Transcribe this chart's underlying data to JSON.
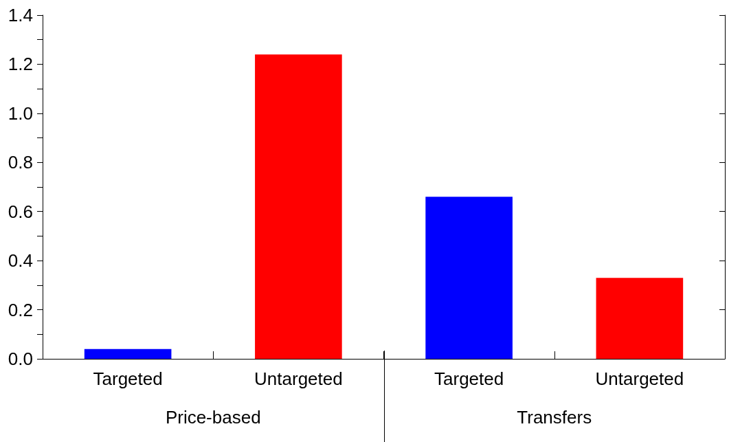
{
  "chart_data": {
    "type": "bar",
    "categories": [
      "Targeted",
      "Untargeted",
      "Targeted",
      "Untargeted"
    ],
    "values": [
      0.04,
      1.24,
      0.66,
      0.33
    ],
    "colors": [
      "#0000ff",
      "#ff0000",
      "#0000ff",
      "#ff0000"
    ],
    "ylim": [
      0,
      1.4
    ],
    "yticks": [
      {
        "value": 0,
        "label": "0.0"
      },
      {
        "value": 0.1,
        "label": null
      },
      {
        "value": 0.2,
        "label": "0.2"
      },
      {
        "value": 0.3,
        "label": null
      },
      {
        "value": 0.4,
        "label": "0.4"
      },
      {
        "value": 0.5,
        "label": null
      },
      {
        "value": 0.6,
        "label": "0.6"
      },
      {
        "value": 0.7,
        "label": null
      },
      {
        "value": 0.8,
        "label": "0.8"
      },
      {
        "value": 0.9,
        "label": null
      },
      {
        "value": 1.0,
        "label": "1.0"
      },
      {
        "value": 1.1,
        "label": null
      },
      {
        "value": 1.2,
        "label": "1.2"
      },
      {
        "value": 1.3,
        "label": null
      },
      {
        "value": 1.4,
        "label": "1.4"
      }
    ],
    "annotations": [
      "Price-based",
      "Transfers"
    ]
  }
}
